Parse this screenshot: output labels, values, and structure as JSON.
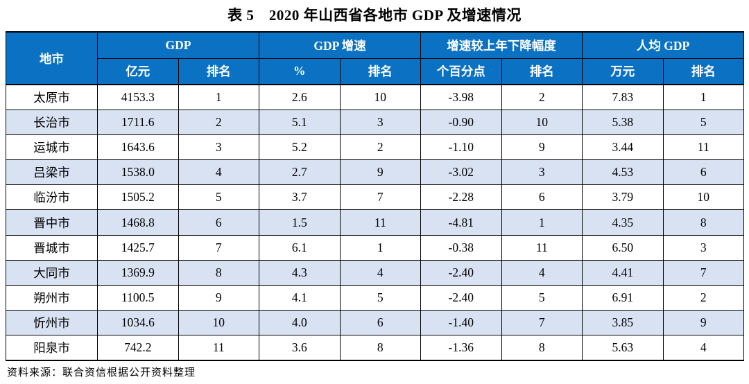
{
  "title": "表 5　2020 年山西省各地市 GDP 及增速情况",
  "source_note": "资料来源：联合资信根据公开资料整理",
  "colors": {
    "header_bg": "#0b71c2",
    "header_text": "#ffffff",
    "stripe_bg": "#d9e2f3",
    "border": "#000000"
  },
  "table": {
    "corner_header": "地市",
    "groups": [
      {
        "label": "GDP",
        "sub": [
          "亿元",
          "排名"
        ]
      },
      {
        "label": "GDP 增速",
        "sub": [
          "%",
          "排名"
        ]
      },
      {
        "label": "增速较上年下降幅度",
        "sub": [
          "个百分点",
          "排名"
        ]
      },
      {
        "label": "人均 GDP",
        "sub": [
          "万元",
          "排名"
        ]
      }
    ],
    "columns": [
      "city",
      "gdp_yi_yuan",
      "gdp_rank",
      "growth_pct",
      "growth_rank",
      "decline_pct_points",
      "decline_rank",
      "per_capita_wan_yuan",
      "per_capita_rank"
    ],
    "rows": [
      [
        "太原市",
        "4153.3",
        "1",
        "2.6",
        "10",
        "-3.98",
        "2",
        "7.83",
        "1"
      ],
      [
        "长治市",
        "1711.6",
        "2",
        "5.1",
        "3",
        "-0.90",
        "10",
        "5.38",
        "5"
      ],
      [
        "运城市",
        "1643.6",
        "3",
        "5.2",
        "2",
        "-1.10",
        "9",
        "3.44",
        "11"
      ],
      [
        "吕梁市",
        "1538.0",
        "4",
        "2.7",
        "9",
        "-3.02",
        "3",
        "4.53",
        "6"
      ],
      [
        "临汾市",
        "1505.2",
        "5",
        "3.7",
        "7",
        "-2.28",
        "6",
        "3.79",
        "10"
      ],
      [
        "晋中市",
        "1468.8",
        "6",
        "1.5",
        "11",
        "-4.81",
        "1",
        "4.35",
        "8"
      ],
      [
        "晋城市",
        "1425.7",
        "7",
        "6.1",
        "1",
        "-0.38",
        "11",
        "6.50",
        "3"
      ],
      [
        "大同市",
        "1369.9",
        "8",
        "4.3",
        "4",
        "-2.40",
        "4",
        "4.41",
        "7"
      ],
      [
        "朔州市",
        "1100.5",
        "9",
        "4.1",
        "5",
        "-2.40",
        "5",
        "6.91",
        "2"
      ],
      [
        "忻州市",
        "1034.6",
        "10",
        "4.0",
        "6",
        "-1.40",
        "7",
        "3.85",
        "9"
      ],
      [
        "阳泉市",
        "742.2",
        "11",
        "3.6",
        "8",
        "-1.36",
        "8",
        "5.63",
        "4"
      ]
    ]
  }
}
